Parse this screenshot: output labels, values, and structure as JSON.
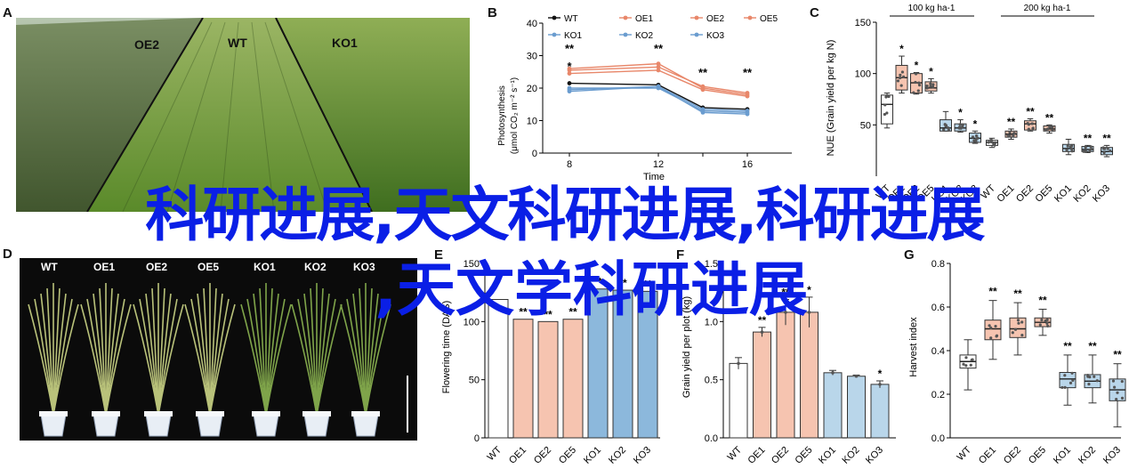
{
  "panel_labels": {
    "a": "A",
    "b": "B",
    "c": "C",
    "d": "D",
    "e": "E",
    "f": "F",
    "g": "G"
  },
  "photo_a": {
    "labels": [
      "OE2",
      "WT",
      "KO1"
    ]
  },
  "photo_d": {
    "labels": [
      "WT",
      "OE1",
      "OE2",
      "OE5",
      "KO1",
      "KO2",
      "KO3"
    ]
  },
  "overlay": {
    "line1": "科研进展,天文科研进展,科研进展",
    "line2": ",天文学科研进展"
  },
  "colors": {
    "wt": "#111111",
    "oe": "#e8876a",
    "ko": "#6a9ccf",
    "oe_fill": "#f6c4b0",
    "ko_fill": "#b9d6ea",
    "overlay": "#0a1fe6"
  },
  "chart_data": [
    {
      "id": "B",
      "type": "line",
      "ylabel": "Photosynthesis (μmol CO2 m-2 s-1)",
      "xlabel": "Time",
      "ylim": [
        0,
        40
      ],
      "yticks": [
        0,
        10,
        20,
        30,
        40
      ],
      "x": [
        8,
        12,
        14,
        16
      ],
      "xticks_visible": [
        "8",
        "12",
        "16"
      ],
      "legend": [
        "WT",
        "OE1",
        "OE2",
        "OE5",
        "KO1",
        "KO2",
        "KO3"
      ],
      "series": [
        {
          "name": "WT",
          "values": [
            21.5,
            21.0,
            14.0,
            13.5
          ]
        },
        {
          "name": "OE1",
          "values": [
            25.5,
            26.5,
            20.5,
            18.5
          ]
        },
        {
          "name": "OE2",
          "values": [
            26.0,
            27.5,
            20.0,
            18.0
          ]
        },
        {
          "name": "OE5",
          "values": [
            24.5,
            25.5,
            19.5,
            17.5
          ]
        },
        {
          "name": "KO1",
          "values": [
            19.0,
            20.5,
            13.5,
            13.0
          ]
        },
        {
          "name": "KO2",
          "values": [
            20.0,
            20.0,
            13.0,
            12.5
          ]
        },
        {
          "name": "KO3",
          "values": [
            19.5,
            20.5,
            12.5,
            12.0
          ]
        }
      ],
      "annotations": [
        {
          "x": 8,
          "text": "**"
        },
        {
          "x": 8,
          "text": "*"
        },
        {
          "x": 12,
          "text": "**"
        },
        {
          "x": 14,
          "text": "**"
        },
        {
          "x": 16,
          "text": "**"
        }
      ]
    },
    {
      "id": "C",
      "type": "box",
      "ylabel": "NUE (Grain yield per kg N)",
      "ylim": [
        0,
        150
      ],
      "yticks": [
        50,
        100,
        150
      ],
      "groups": [
        "100 kg ha-1",
        "200 kg ha-1"
      ],
      "categories": [
        "WT",
        "OE1",
        "OE2",
        "OE5",
        "KO1",
        "KO2",
        "KO3",
        "WT",
        "OE1",
        "OE2",
        "OE5",
        "KO1",
        "KO2",
        "KO3"
      ],
      "boxes": [
        {
          "min": 47,
          "q1": 51,
          "median": 70,
          "q3": 79,
          "max": 81
        },
        {
          "min": 81,
          "q1": 84,
          "median": 96,
          "q3": 108,
          "max": 117
        },
        {
          "min": 80,
          "q1": 81,
          "median": 91,
          "q3": 100,
          "max": 101
        },
        {
          "min": 81,
          "q1": 83,
          "median": 86,
          "q3": 92,
          "max": 95
        },
        {
          "min": 44,
          "q1": 44,
          "median": 47,
          "q3": 55,
          "max": 63
        },
        {
          "min": 43,
          "q1": 44,
          "median": 47,
          "q3": 51,
          "max": 55
        },
        {
          "min": 32,
          "q1": 33,
          "median": 37,
          "q3": 42,
          "max": 44
        },
        {
          "min": 28,
          "q1": 30,
          "median": 33,
          "q3": 35,
          "max": 37
        },
        {
          "min": 36,
          "q1": 38,
          "median": 41,
          "q3": 44,
          "max": 46
        },
        {
          "min": 44,
          "q1": 45,
          "median": 51,
          "q3": 54,
          "max": 56
        },
        {
          "min": 42,
          "q1": 44,
          "median": 46,
          "q3": 49,
          "max": 50
        },
        {
          "min": 21,
          "q1": 24,
          "median": 27,
          "q3": 31,
          "max": 36
        },
        {
          "min": 23,
          "q1": 24,
          "median": 26,
          "q3": 29,
          "max": 30
        },
        {
          "min": 19,
          "q1": 21,
          "median": 24,
          "q3": 28,
          "max": 30
        }
      ],
      "annotations": [
        "",
        "*",
        "*",
        "*",
        "",
        "*",
        "*",
        "",
        "**",
        "**",
        "**",
        "",
        "**",
        "**"
      ]
    },
    {
      "id": "E",
      "type": "bar",
      "ylabel": "Flowering time (DAS)",
      "ylim": [
        0,
        150
      ],
      "yticks": [
        0,
        50,
        100,
        150
      ],
      "categories": [
        "WT",
        "OE1",
        "OE2",
        "OE5",
        "KO1",
        "KO2",
        "KO3"
      ],
      "values": [
        119,
        102,
        100,
        102,
        128,
        127,
        126
      ],
      "annotations": [
        "",
        "**",
        "**",
        "**",
        "**",
        "**",
        "**"
      ]
    },
    {
      "id": "F",
      "type": "bar",
      "ylabel": "Grain yield per plot (kg)",
      "ylim": [
        0,
        1.5
      ],
      "yticks": [
        0,
        0.5,
        1.0,
        1.5
      ],
      "categories": [
        "WT",
        "OE1",
        "OE2",
        "OE5",
        "KO1",
        "KO2",
        "KO3"
      ],
      "values": [
        0.64,
        0.91,
        1.08,
        1.08,
        0.56,
        0.53,
        0.46
      ],
      "errors": [
        0.05,
        0.04,
        0.11,
        0.13,
        0.02,
        0.01,
        0.03
      ],
      "annotations": [
        "",
        "**",
        "**",
        "*",
        "",
        "",
        "*"
      ]
    },
    {
      "id": "G",
      "type": "box",
      "ylabel": "Harvest index",
      "ylim": [
        0,
        0.8
      ],
      "yticks": [
        0,
        0.2,
        0.4,
        0.6,
        0.8
      ],
      "categories": [
        "WT",
        "OE1",
        "OE2",
        "OE5",
        "KO1",
        "KO2",
        "KO3"
      ],
      "boxes": [
        {
          "min": 0.22,
          "q1": 0.32,
          "median": 0.35,
          "q3": 0.38,
          "max": 0.45
        },
        {
          "min": 0.36,
          "q1": 0.45,
          "median": 0.5,
          "q3": 0.54,
          "max": 0.63
        },
        {
          "min": 0.38,
          "q1": 0.46,
          "median": 0.5,
          "q3": 0.55,
          "max": 0.62
        },
        {
          "min": 0.47,
          "q1": 0.51,
          "median": 0.53,
          "q3": 0.55,
          "max": 0.59
        },
        {
          "min": 0.15,
          "q1": 0.23,
          "median": 0.27,
          "q3": 0.3,
          "max": 0.38
        },
        {
          "min": 0.16,
          "q1": 0.23,
          "median": 0.26,
          "q3": 0.29,
          "max": 0.38
        },
        {
          "min": 0.05,
          "q1": 0.17,
          "median": 0.22,
          "q3": 0.27,
          "max": 0.34
        }
      ],
      "annotations": [
        "",
        "**",
        "**",
        "**",
        "**",
        "**",
        "**"
      ]
    }
  ]
}
